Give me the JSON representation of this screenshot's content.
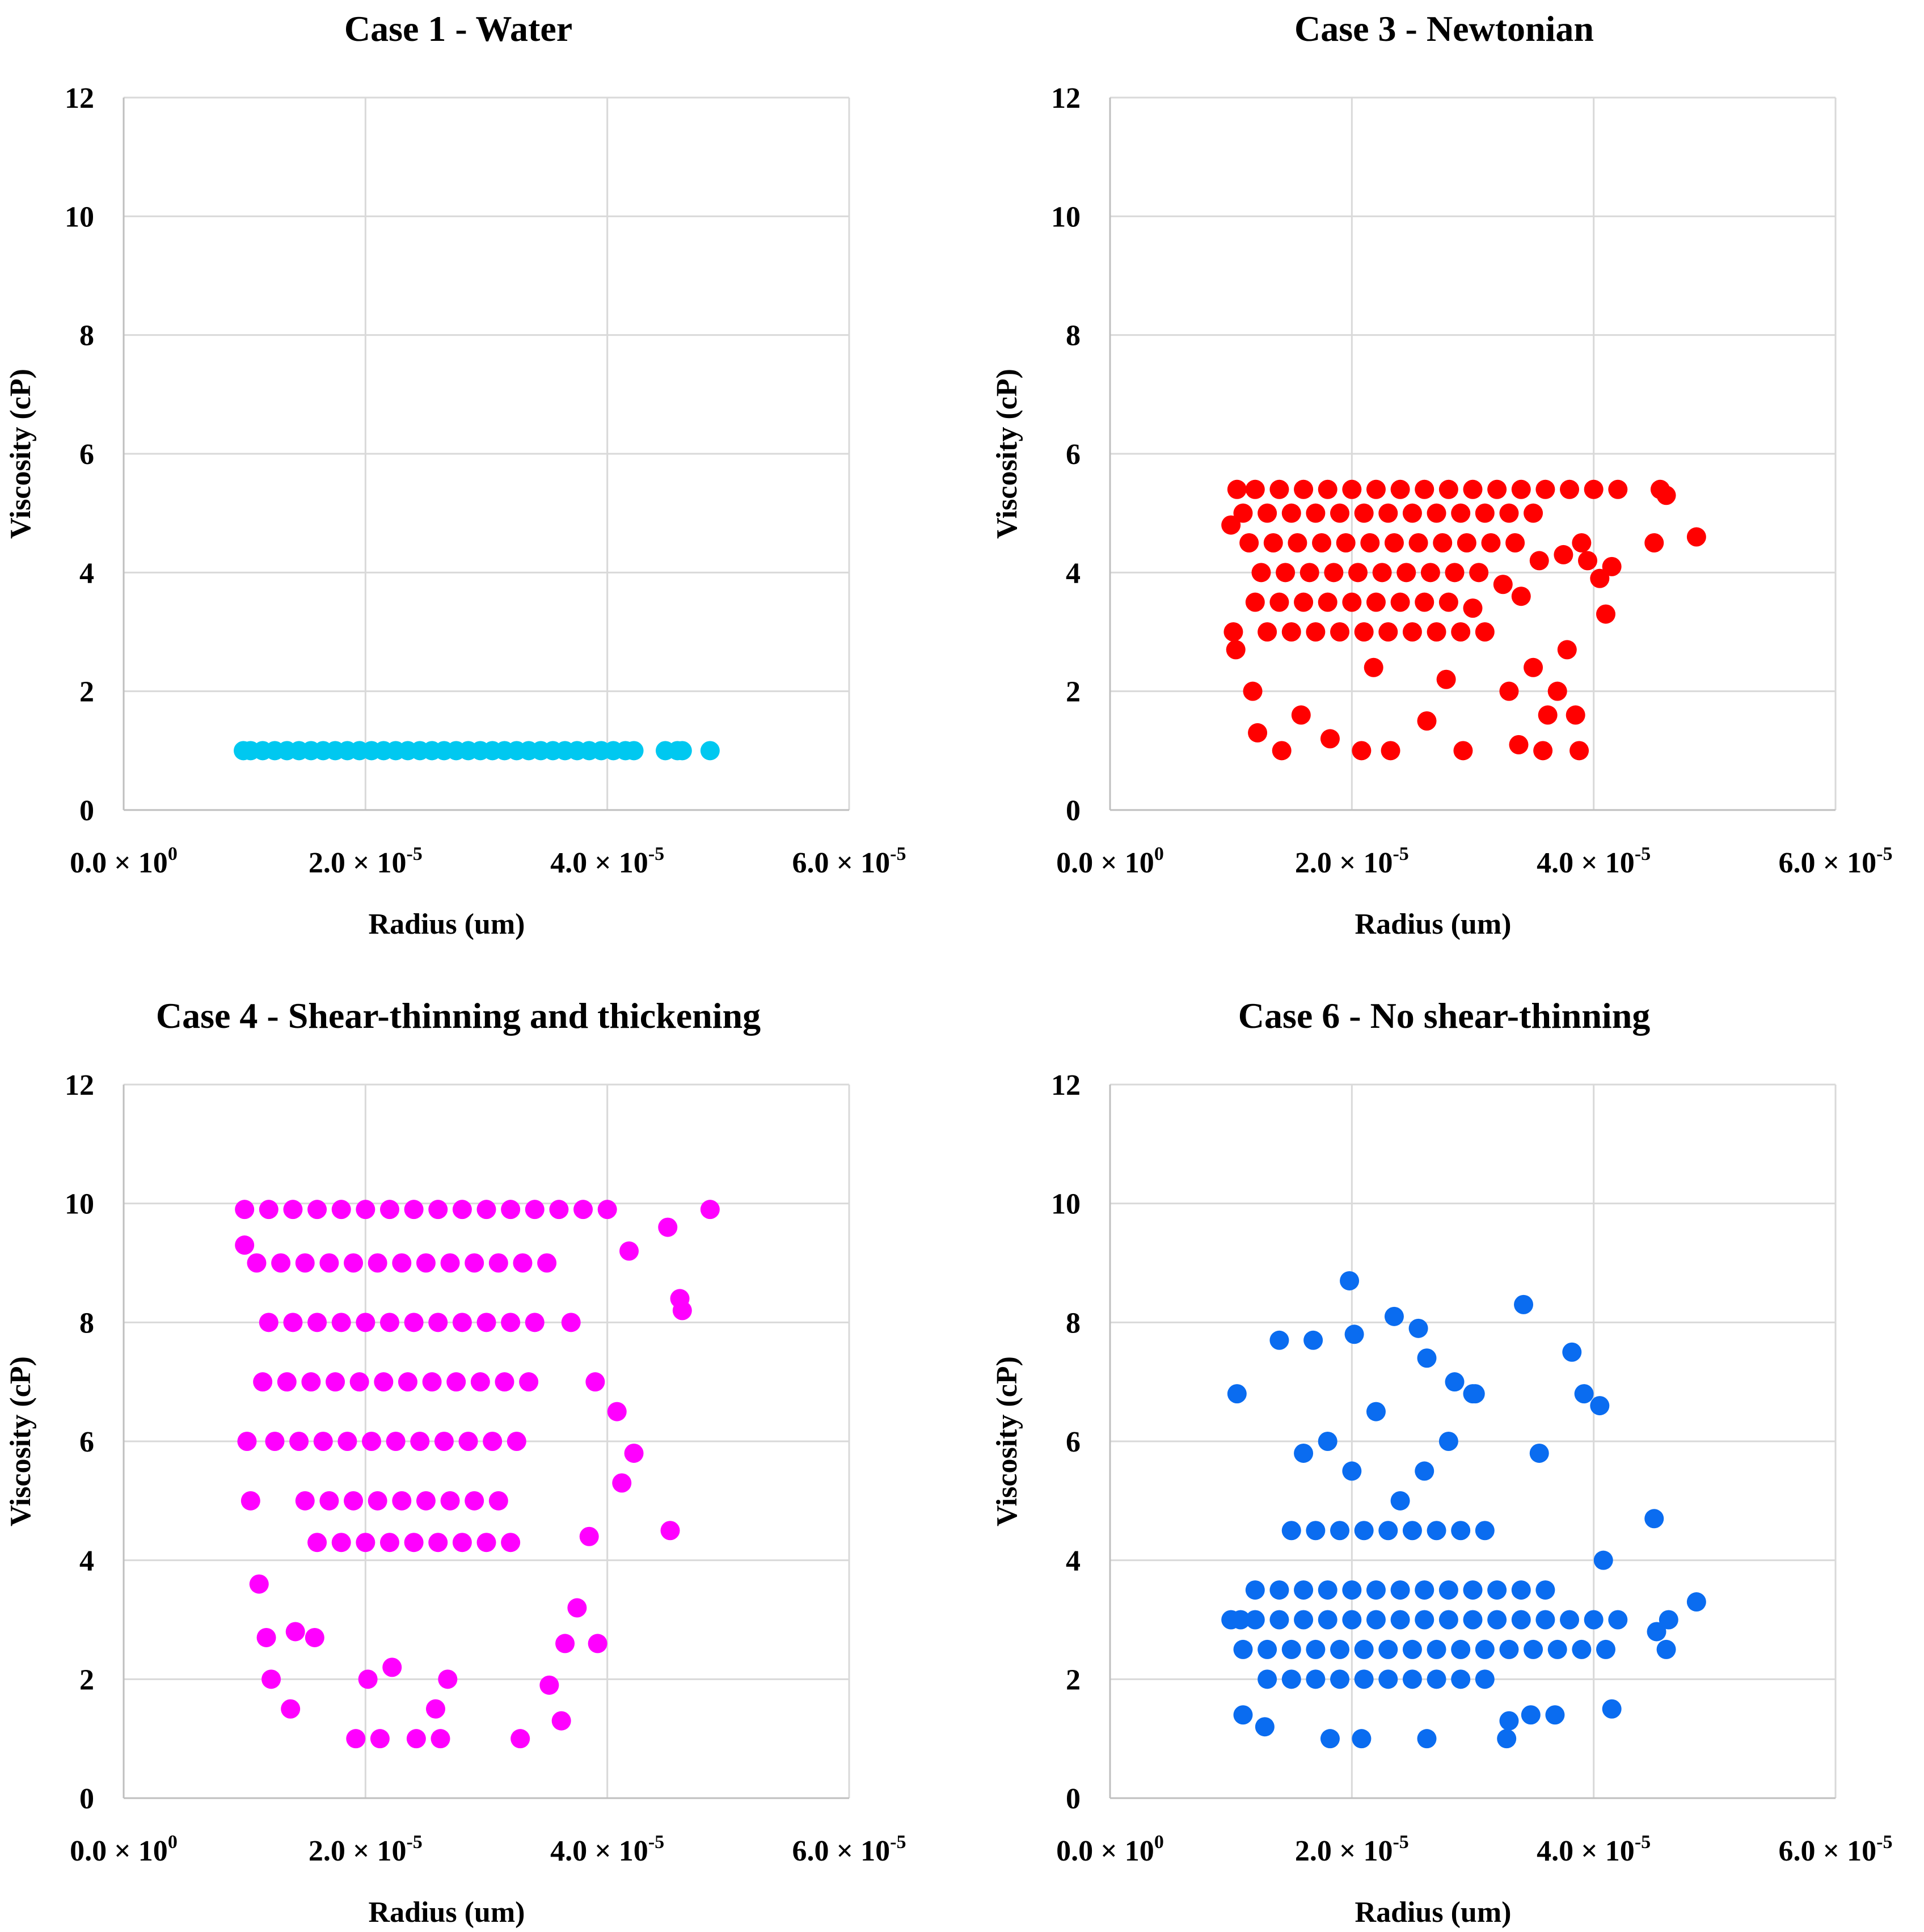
{
  "chart_data": [
    {
      "type": "scatter",
      "title": "Case 1 - Water",
      "xlabel": "Radius (um)",
      "ylabel": "Viscosity (cP)",
      "xlim": [
        0,
        6e-05
      ],
      "ylim": [
        0,
        12
      ],
      "x_ticks": [
        0,
        2e-05,
        4e-05,
        6e-05
      ],
      "x_tick_labels": [
        {
          "mantissa": "0.0",
          "exp": "0"
        },
        {
          "mantissa": "2.0",
          "exp": "-5"
        },
        {
          "mantissa": "4.0",
          "exp": "-5"
        },
        {
          "mantissa": "6.0",
          "exp": "-5"
        }
      ],
      "y_ticks": [
        "0",
        "2",
        "4",
        "6",
        "8",
        "10",
        "12"
      ],
      "grid": true,
      "color": "#00c8f0",
      "series": [
        {
          "x": [
            9.9e-06,
            1.05e-05,
            1.15e-05,
            1.25e-05,
            1.35e-05,
            1.45e-05,
            1.55e-05,
            1.65e-05,
            1.75e-05,
            1.85e-05,
            1.95e-05,
            2.05e-05,
            2.15e-05,
            2.25e-05,
            2.35e-05,
            2.45e-05,
            2.55e-05,
            2.65e-05,
            2.75e-05,
            2.85e-05,
            2.95e-05,
            3.05e-05,
            3.15e-05,
            3.25e-05,
            3.35e-05,
            3.45e-05,
            3.55e-05,
            3.65e-05,
            3.75e-05,
            3.85e-05,
            3.95e-05,
            4.05e-05,
            4.15e-05,
            4.22e-05,
            4.48e-05,
            4.58e-05,
            4.62e-05,
            4.85e-05
          ],
          "y": [
            1,
            1,
            1,
            1,
            1,
            1,
            1,
            1,
            1,
            1,
            1,
            1,
            1,
            1,
            1,
            1,
            1,
            1,
            1,
            1,
            1,
            1,
            1,
            1,
            1,
            1,
            1,
            1,
            1,
            1,
            1,
            1,
            1,
            1,
            1,
            1,
            1,
            1
          ]
        }
      ]
    },
    {
      "type": "scatter",
      "title": "Case 3 - Newtonian",
      "xlabel": "Radius (um)",
      "ylabel": "Viscosity (cP)",
      "xlim": [
        0,
        6e-05
      ],
      "ylim": [
        0,
        12
      ],
      "x_ticks": [
        0,
        2e-05,
        4e-05,
        6e-05
      ],
      "x_tick_labels": [
        {
          "mantissa": "0.0",
          "exp": "0"
        },
        {
          "mantissa": "2.0",
          "exp": "-5"
        },
        {
          "mantissa": "4.0",
          "exp": "-5"
        },
        {
          "mantissa": "6.0",
          "exp": "-5"
        }
      ],
      "y_ticks": [
        "0",
        "2",
        "4",
        "6",
        "8",
        "10",
        "12"
      ],
      "grid": true,
      "color": "#ff0000",
      "series": [
        {
          "x": [
            1.05e-05,
            1.2e-05,
            1.4e-05,
            1.6e-05,
            1.8e-05,
            2e-05,
            2.2e-05,
            2.4e-05,
            2.6e-05,
            2.8e-05,
            3e-05,
            3.2e-05,
            3.4e-05,
            3.6e-05,
            3.8e-05,
            4e-05,
            4.2e-05,
            1.1e-05,
            1.3e-05,
            1.5e-05,
            1.7e-05,
            1.9e-05,
            2.1e-05,
            2.3e-05,
            2.5e-05,
            2.7e-05,
            2.9e-05,
            3.1e-05,
            3.3e-05,
            3.5e-05,
            1.15e-05,
            1.35e-05,
            1.55e-05,
            1.75e-05,
            1.95e-05,
            2.15e-05,
            2.35e-05,
            2.55e-05,
            2.75e-05,
            2.95e-05,
            3.15e-05,
            3.35e-05,
            3.55e-05,
            3.75e-05,
            1.25e-05,
            1.45e-05,
            1.65e-05,
            1.85e-05,
            2.05e-05,
            2.25e-05,
            2.45e-05,
            2.65e-05,
            2.85e-05,
            3.05e-05,
            3.25e-05,
            1.2e-05,
            1.4e-05,
            1.6e-05,
            1.8e-05,
            2e-05,
            2.2e-05,
            2.4e-05,
            2.6e-05,
            2.8e-05,
            3e-05,
            3.4e-05,
            1.3e-05,
            1.5e-05,
            1.7e-05,
            1.9e-05,
            2.1e-05,
            2.3e-05,
            2.5e-05,
            2.7e-05,
            2.9e-05,
            3.1e-05,
            1e-05,
            1.02e-05,
            1.04e-05,
            1.18e-05,
            1.22e-05,
            1.42e-05,
            1.58e-05,
            1.82e-05,
            2.08e-05,
            2.18e-05,
            2.32e-05,
            2.62e-05,
            2.78e-05,
            2.92e-05,
            3.38e-05,
            3.58e-05,
            3.62e-05,
            3.78e-05,
            3.9e-05,
            3.95e-05,
            4.05e-05,
            4.1e-05,
            4.15e-05,
            4.5e-05,
            4.55e-05,
            4.6e-05,
            4.85e-05,
            3.3e-05,
            3.5e-05,
            3.7e-05,
            3.85e-05,
            3.88e-05
          ],
          "y": [
            5.4,
            5.4,
            5.4,
            5.4,
            5.4,
            5.4,
            5.4,
            5.4,
            5.4,
            5.4,
            5.4,
            5.4,
            5.4,
            5.4,
            5.4,
            5.4,
            5.4,
            5.0,
            5.0,
            5.0,
            5.0,
            5.0,
            5.0,
            5.0,
            5.0,
            5.0,
            5.0,
            5.0,
            5.0,
            5.0,
            4.5,
            4.5,
            4.5,
            4.5,
            4.5,
            4.5,
            4.5,
            4.5,
            4.5,
            4.5,
            4.5,
            4.5,
            4.2,
            4.3,
            4.0,
            4.0,
            4.0,
            4.0,
            4.0,
            4.0,
            4.0,
            4.0,
            4.0,
            4.0,
            3.8,
            3.5,
            3.5,
            3.5,
            3.5,
            3.5,
            3.5,
            3.5,
            3.5,
            3.5,
            3.4,
            3.6,
            3.0,
            3.0,
            3.0,
            3.0,
            3.0,
            3.0,
            3.0,
            3.0,
            3.0,
            3.0,
            4.8,
            3.0,
            2.7,
            2.0,
            1.3,
            1.0,
            1.6,
            1.2,
            1.0,
            2.4,
            1.0,
            1.5,
            2.2,
            1.0,
            1.1,
            1.0,
            1.6,
            2.7,
            4.5,
            4.2,
            3.9,
            3.3,
            4.1,
            4.5,
            5.4,
            5.3,
            4.6,
            2.0,
            2.4,
            2.0,
            1.6,
            1.0
          ]
        }
      ]
    },
    {
      "type": "scatter",
      "title": "Case 4 - Shear-thinning and thickening",
      "xlabel": "Radius (um)",
      "ylabel": "Viscosity (cP)",
      "xlim": [
        0,
        6e-05
      ],
      "ylim": [
        0,
        12
      ],
      "x_ticks": [
        0,
        2e-05,
        4e-05,
        6e-05
      ],
      "x_tick_labels": [
        {
          "mantissa": "0.0",
          "exp": "0"
        },
        {
          "mantissa": "2.0",
          "exp": "-5"
        },
        {
          "mantissa": "4.0",
          "exp": "-5"
        },
        {
          "mantissa": "6.0",
          "exp": "-5"
        }
      ],
      "y_ticks": [
        "0",
        "2",
        "4",
        "6",
        "8",
        "10",
        "12"
      ],
      "grid": true,
      "color": "#ff00ff",
      "series": [
        {
          "x": [
            1e-05,
            1.2e-05,
            1.4e-05,
            1.6e-05,
            1.8e-05,
            2e-05,
            2.2e-05,
            2.4e-05,
            2.6e-05,
            2.8e-05,
            3e-05,
            3.2e-05,
            3.4e-05,
            3.6e-05,
            3.8e-05,
            4e-05,
            1.1e-05,
            1.3e-05,
            1.5e-05,
            1.7e-05,
            1.9e-05,
            2.1e-05,
            2.3e-05,
            2.5e-05,
            2.7e-05,
            2.9e-05,
            3.1e-05,
            3.3e-05,
            3.5e-05,
            1.2e-05,
            1.4e-05,
            1.6e-05,
            1.8e-05,
            2e-05,
            2.2e-05,
            2.4e-05,
            2.6e-05,
            2.8e-05,
            3e-05,
            3.2e-05,
            3.4e-05,
            1.15e-05,
            1.35e-05,
            1.55e-05,
            1.75e-05,
            1.95e-05,
            2.15e-05,
            2.35e-05,
            2.55e-05,
            2.75e-05,
            2.95e-05,
            3.15e-05,
            3.35e-05,
            1.25e-05,
            1.45e-05,
            1.65e-05,
            1.85e-05,
            2.05e-05,
            2.25e-05,
            2.45e-05,
            2.65e-05,
            2.85e-05,
            3.05e-05,
            3.25e-05,
            1.5e-05,
            1.7e-05,
            1.9e-05,
            2.1e-05,
            2.3e-05,
            2.5e-05,
            2.7e-05,
            2.9e-05,
            3.1e-05,
            1.6e-05,
            1.8e-05,
            2e-05,
            2.2e-05,
            2.4e-05,
            2.6e-05,
            2.8e-05,
            3e-05,
            3.2e-05,
            1e-05,
            1.02e-05,
            1.05e-05,
            1.12e-05,
            1.18e-05,
            1.22e-05,
            1.38e-05,
            1.42e-05,
            1.58e-05,
            1.92e-05,
            2.02e-05,
            2.12e-05,
            2.22e-05,
            2.42e-05,
            2.58e-05,
            2.62e-05,
            2.68e-05,
            3.28e-05,
            3.52e-05,
            3.62e-05,
            3.65e-05,
            3.85e-05,
            3.92e-05,
            4.08e-05,
            4.12e-05,
            4.18e-05,
            4.22e-05,
            4.5e-05,
            4.52e-05,
            4.6e-05,
            4.62e-05,
            4.85e-05,
            3.7e-05,
            3.9e-05,
            3.75e-05
          ],
          "y": [
            9.9,
            9.9,
            9.9,
            9.9,
            9.9,
            9.9,
            9.9,
            9.9,
            9.9,
            9.9,
            9.9,
            9.9,
            9.9,
            9.9,
            9.9,
            9.9,
            9.0,
            9.0,
            9.0,
            9.0,
            9.0,
            9.0,
            9.0,
            9.0,
            9.0,
            9.0,
            9.0,
            9.0,
            9.0,
            8.0,
            8.0,
            8.0,
            8.0,
            8.0,
            8.0,
            8.0,
            8.0,
            8.0,
            8.0,
            8.0,
            8.0,
            7.0,
            7.0,
            7.0,
            7.0,
            7.0,
            7.0,
            7.0,
            7.0,
            7.0,
            7.0,
            7.0,
            7.0,
            6.0,
            6.0,
            6.0,
            6.0,
            6.0,
            6.0,
            6.0,
            6.0,
            6.0,
            6.0,
            6.0,
            5.0,
            5.0,
            5.0,
            5.0,
            5.0,
            5.0,
            5.0,
            5.0,
            5.0,
            4.3,
            4.3,
            4.3,
            4.3,
            4.3,
            4.3,
            4.3,
            4.3,
            4.3,
            9.3,
            6.0,
            5.0,
            3.6,
            2.7,
            2.0,
            1.5,
            2.8,
            2.7,
            1.0,
            2.0,
            1.0,
            2.2,
            1.0,
            1.5,
            1.0,
            2.0,
            1.0,
            1.9,
            1.3,
            2.6,
            4.4,
            2.6,
            6.5,
            5.3,
            9.2,
            5.8,
            9.6,
            4.5,
            8.4,
            8.2,
            9.9,
            8.0,
            7.0,
            3.2
          ]
        }
      ]
    },
    {
      "type": "scatter",
      "title": "Case 6 - No shear-thinning",
      "xlabel": "Radius (um)",
      "ylabel": "Viscosity (cP)",
      "xlim": [
        0,
        6e-05
      ],
      "ylim": [
        0,
        12
      ],
      "x_ticks": [
        0,
        2e-05,
        4e-05,
        6e-05
      ],
      "x_tick_labels": [
        {
          "mantissa": "0.0",
          "exp": "0"
        },
        {
          "mantissa": "2.0",
          "exp": "-5"
        },
        {
          "mantissa": "4.0",
          "exp": "-5"
        },
        {
          "mantissa": "6.0",
          "exp": "-5"
        }
      ],
      "y_ticks": [
        "0",
        "2",
        "4",
        "6",
        "8",
        "10",
        "12"
      ],
      "grid": true,
      "color": "#0a6cf0",
      "series": [
        {
          "x": [
            1e-05,
            1.2e-05,
            1.4e-05,
            1.6e-05,
            1.8e-05,
            2e-05,
            2.2e-05,
            2.4e-05,
            2.6e-05,
            2.8e-05,
            3e-05,
            3.2e-05,
            3.4e-05,
            3.6e-05,
            3.8e-05,
            4e-05,
            4.2e-05,
            1.1e-05,
            1.3e-05,
            1.5e-05,
            1.7e-05,
            1.9e-05,
            2.1e-05,
            2.3e-05,
            2.5e-05,
            2.7e-05,
            2.9e-05,
            3.1e-05,
            3.3e-05,
            3.5e-05,
            3.7e-05,
            3.9e-05,
            4.1e-05,
            1.2e-05,
            1.4e-05,
            1.6e-05,
            1.8e-05,
            2e-05,
            2.2e-05,
            2.4e-05,
            2.6e-05,
            2.8e-05,
            3e-05,
            3.2e-05,
            3.4e-05,
            3.6e-05,
            1.3e-05,
            1.5e-05,
            1.7e-05,
            1.9e-05,
            2.1e-05,
            2.3e-05,
            2.5e-05,
            2.7e-05,
            2.9e-05,
            3.1e-05,
            1.5e-05,
            1.7e-05,
            1.9e-05,
            2.1e-05,
            2.3e-05,
            2.5e-05,
            2.7e-05,
            2.9e-05,
            3.1e-05,
            1.6e-05,
            1.8e-05,
            2e-05,
            2.2e-05,
            2.4e-05,
            2.6e-05,
            2.8e-05,
            3e-05,
            1.05e-05,
            1.1e-05,
            1.4e-05,
            1.68e-05,
            1.98e-05,
            2.02e-05,
            2.35e-05,
            2.55e-05,
            2.62e-05,
            2.85e-05,
            3.02e-05,
            3.42e-05,
            3.55e-05,
            3.82e-05,
            3.92e-05,
            4.05e-05,
            4.08e-05,
            4.5e-05,
            4.6e-05,
            4.85e-05,
            4.15e-05,
            4.52e-05,
            4.62e-05,
            3.3e-05,
            3.48e-05,
            3.68e-05,
            1.08e-05,
            1.28e-05,
            1.82e-05,
            2.08e-05,
            2.62e-05,
            3.28e-05
          ],
          "y": [
            3.0,
            3.0,
            3.0,
            3.0,
            3.0,
            3.0,
            3.0,
            3.0,
            3.0,
            3.0,
            3.0,
            3.0,
            3.0,
            3.0,
            3.0,
            3.0,
            3.0,
            2.5,
            2.5,
            2.5,
            2.5,
            2.5,
            2.5,
            2.5,
            2.5,
            2.5,
            2.5,
            2.5,
            2.5,
            2.5,
            2.5,
            2.5,
            2.5,
            3.5,
            3.5,
            3.5,
            3.5,
            3.5,
            3.5,
            3.5,
            3.5,
            3.5,
            3.5,
            3.5,
            3.5,
            3.5,
            2.0,
            2.0,
            2.0,
            2.0,
            2.0,
            2.0,
            2.0,
            2.0,
            2.0,
            2.0,
            4.5,
            4.5,
            4.5,
            4.5,
            4.5,
            4.5,
            4.5,
            4.5,
            4.5,
            5.8,
            6.0,
            5.5,
            6.5,
            5.0,
            5.5,
            6.0,
            6.8,
            6.8,
            1.4,
            7.7,
            7.7,
            8.7,
            7.8,
            8.1,
            7.9,
            7.4,
            7.0,
            6.8,
            8.3,
            5.8,
            7.5,
            6.8,
            6.6,
            4.0,
            4.7,
            2.5,
            3.3,
            1.5,
            2.8,
            3.0,
            1.3,
            1.4,
            1.4,
            3.0,
            1.2,
            1.0,
            1.0,
            1.0,
            1.0
          ]
        }
      ]
    }
  ]
}
